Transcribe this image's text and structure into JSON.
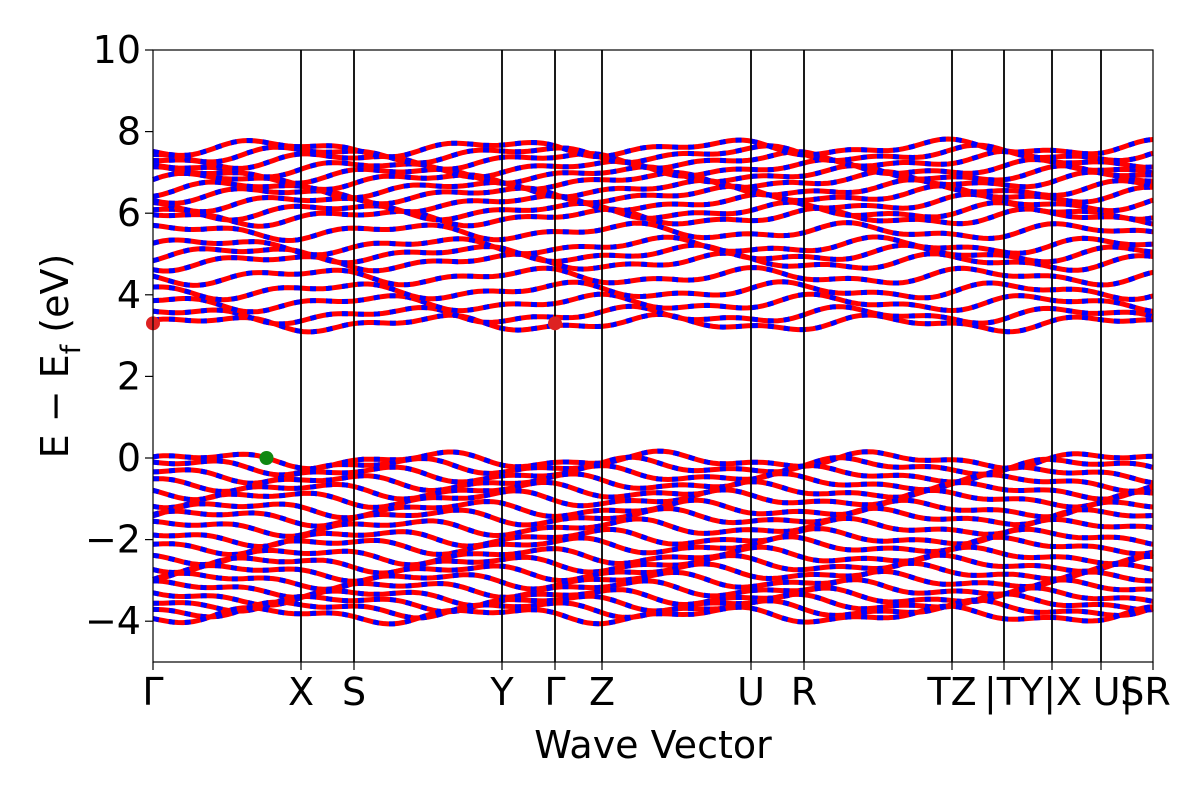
{
  "chart_data": {
    "type": "line",
    "xlabel": "Wave Vector",
    "ylabel": "E − E_f (eV)",
    "ylabel_main": "E − E",
    "ylabel_sub": "f",
    "ylabel_unit": " (eV)",
    "ylim": [
      -5,
      10
    ],
    "yticks": [
      -4,
      -2,
      0,
      2,
      4,
      6,
      8,
      10
    ],
    "ytick_labels": [
      "−4",
      "−2",
      "0",
      "2",
      "4",
      "6",
      "8",
      "10"
    ],
    "x_range": [
      0,
      20
    ],
    "kpoints": [
      {
        "x": 0,
        "label": "Γ"
      },
      {
        "x": 2.96,
        "label": "X"
      },
      {
        "x": 4.02,
        "label": "S"
      },
      {
        "x": 6.98,
        "label": "Y"
      },
      {
        "x": 8.04,
        "label": "Γ"
      },
      {
        "x": 8.98,
        "label": "Z"
      },
      {
        "x": 11.96,
        "label": "U"
      },
      {
        "x": 13.02,
        "label": "R"
      },
      {
        "x": 15.98,
        "label": "T"
      },
      {
        "x": 17.02,
        "label": "Z"
      },
      {
        "x": 17.98,
        "label": "|T"
      },
      {
        "x": 18.96,
        "label": "Y|X"
      },
      {
        "x": 20,
        "label": "U| S"
      }
    ],
    "kpoint_labels": [
      {
        "x": 0,
        "label": "Γ"
      },
      {
        "x": 2.96,
        "label": "X"
      },
      {
        "x": 4.02,
        "label": "S"
      },
      {
        "x": 6.98,
        "label": "Y"
      },
      {
        "x": 8.04,
        "label": "Γ"
      },
      {
        "x": 8.98,
        "label": "Z"
      },
      {
        "x": 11.96,
        "label": "U"
      },
      {
        "x": 13.02,
        "label": "R"
      },
      {
        "x": 15.98,
        "label": "TZ"
      },
      {
        "x": 17.6,
        "label": "|TY|X"
      },
      {
        "x": 19.2,
        "label": "U|"
      },
      {
        "x": 19.85,
        "label": "SR"
      }
    ],
    "band_colors": [
      "#ff0000",
      "#0000ff"
    ],
    "cbm_markers": [
      {
        "x": 0,
        "y": 3.3
      },
      {
        "x": 8.04,
        "y": 3.3
      }
    ],
    "vbm_marker": {
      "x": 2.27,
      "y": 0.0
    },
    "cbm_color": "#dd2222",
    "vbm_color": "#118811",
    "conduction_bands": [
      3.3,
      3.5,
      3.8,
      4.1,
      4.45,
      4.8,
      5.0,
      5.2,
      5.55,
      5.9,
      6.05,
      6.25,
      6.45,
      6.6,
      6.8,
      6.95,
      7.1,
      7.3,
      7.45,
      7.6
    ],
    "valence_bands": [
      -0.05,
      -0.2,
      -0.4,
      -0.6,
      -0.8,
      -1.0,
      -1.25,
      -1.45,
      -1.7,
      -1.95,
      -2.15,
      -2.4,
      -2.6,
      -2.8,
      -3.0,
      -3.2,
      -3.4,
      -3.55,
      -3.7,
      -3.85
    ]
  }
}
